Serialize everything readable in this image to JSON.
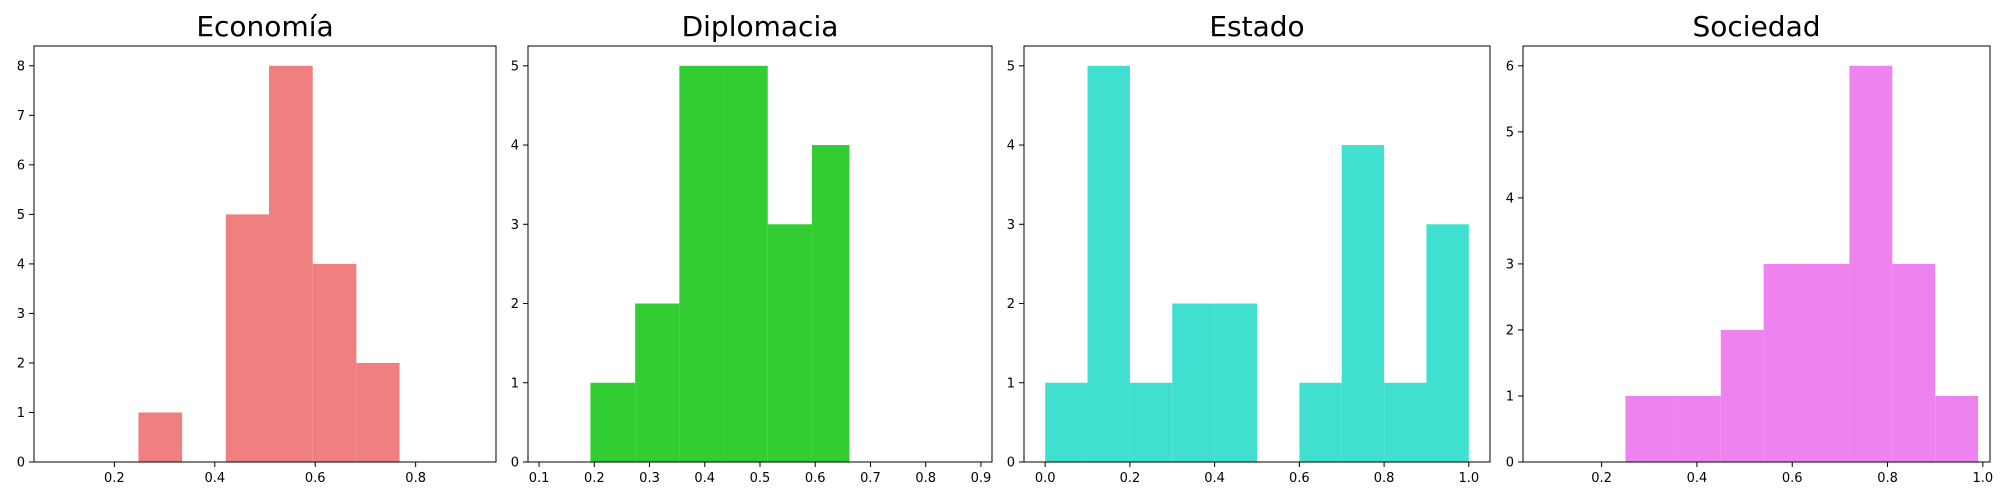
{
  "chart_data": [
    {
      "type": "bar",
      "subtype": "histogram",
      "title": "Economía",
      "color": "#f08080",
      "xlim": [
        0.04,
        0.96
      ],
      "ylim": [
        0,
        8.4
      ],
      "xticks": [
        0.2,
        0.4,
        0.6,
        0.8
      ],
      "xtick_labels": [
        "0.2",
        "0.4",
        "0.6",
        "0.8"
      ],
      "yticks": [
        0,
        1,
        2,
        3,
        4,
        5,
        6,
        7,
        8
      ],
      "ytick_labels": [
        "0",
        "1",
        "2",
        "3",
        "4",
        "5",
        "6",
        "7",
        "8"
      ],
      "bins": [
        {
          "x0": 0.248,
          "x1": 0.335,
          "count": 1
        },
        {
          "x0": 0.422,
          "x1": 0.508,
          "count": 5
        },
        {
          "x0": 0.508,
          "x1": 0.595,
          "count": 8
        },
        {
          "x0": 0.595,
          "x1": 0.682,
          "count": 4
        },
        {
          "x0": 0.682,
          "x1": 0.768,
          "count": 2
        }
      ]
    },
    {
      "type": "bar",
      "subtype": "histogram",
      "title": "Diplomacia",
      "color": "#32cd32",
      "xlim": [
        0.08,
        0.92
      ],
      "ylim": [
        0,
        5.25
      ],
      "xticks": [
        0.1,
        0.2,
        0.3,
        0.4,
        0.5,
        0.6,
        0.7,
        0.8,
        0.9
      ],
      "xtick_labels": [
        "0.1",
        "0.2",
        "0.3",
        "0.4",
        "0.5",
        "0.6",
        "0.7",
        "0.8",
        "0.9"
      ],
      "yticks": [
        0,
        1,
        2,
        3,
        4,
        5
      ],
      "ytick_labels": [
        "0",
        "1",
        "2",
        "3",
        "4",
        "5"
      ],
      "bins": [
        {
          "x0": 0.193,
          "x1": 0.274,
          "count": 1
        },
        {
          "x0": 0.274,
          "x1": 0.354,
          "count": 2
        },
        {
          "x0": 0.354,
          "x1": 0.434,
          "count": 5
        },
        {
          "x0": 0.434,
          "x1": 0.514,
          "count": 5
        },
        {
          "x0": 0.514,
          "x1": 0.594,
          "count": 3
        },
        {
          "x0": 0.594,
          "x1": 0.662,
          "count": 4
        }
      ]
    },
    {
      "type": "bar",
      "subtype": "histogram",
      "title": "Estado",
      "color": "#40e0d0",
      "xlim": [
        -0.05,
        1.05
      ],
      "ylim": [
        0,
        5.25
      ],
      "xticks": [
        0.0,
        0.2,
        0.4,
        0.6,
        0.8,
        1.0
      ],
      "xtick_labels": [
        "0.0",
        "0.2",
        "0.4",
        "0.6",
        "0.8",
        "1.0"
      ],
      "yticks": [
        0,
        1,
        2,
        3,
        4,
        5
      ],
      "ytick_labels": [
        "0",
        "1",
        "2",
        "3",
        "4",
        "5"
      ],
      "bins": [
        {
          "x0": 0.0,
          "x1": 0.1,
          "count": 1
        },
        {
          "x0": 0.1,
          "x1": 0.2,
          "count": 5
        },
        {
          "x0": 0.2,
          "x1": 0.3,
          "count": 1
        },
        {
          "x0": 0.3,
          "x1": 0.4,
          "count": 2
        },
        {
          "x0": 0.4,
          "x1": 0.5,
          "count": 2
        },
        {
          "x0": 0.5,
          "x1": 0.6,
          "count": 0
        },
        {
          "x0": 0.6,
          "x1": 0.7,
          "count": 1
        },
        {
          "x0": 0.7,
          "x1": 0.8,
          "count": 4
        },
        {
          "x0": 0.8,
          "x1": 0.9,
          "count": 1
        },
        {
          "x0": 0.9,
          "x1": 1.0,
          "count": 3
        }
      ]
    },
    {
      "type": "bar",
      "subtype": "histogram",
      "title": "Sociedad",
      "color": "#ee82ee",
      "xlim": [
        0.035,
        1.015
      ],
      "ylim": [
        0,
        6.3
      ],
      "xticks": [
        0.2,
        0.4,
        0.6,
        0.8,
        1.0
      ],
      "xtick_labels": [
        "0.2",
        "0.4",
        "0.6",
        "0.8",
        "1.0"
      ],
      "yticks": [
        0,
        1,
        2,
        3,
        4,
        5,
        6
      ],
      "ytick_labels": [
        "0",
        "1",
        "2",
        "3",
        "4",
        "5",
        "6"
      ],
      "bins": [
        {
          "x0": 0.25,
          "x1": 0.35,
          "count": 1
        },
        {
          "x0": 0.35,
          "x1": 0.45,
          "count": 1
        },
        {
          "x0": 0.45,
          "x1": 0.54,
          "count": 2
        },
        {
          "x0": 0.54,
          "x1": 0.63,
          "count": 3
        },
        {
          "x0": 0.63,
          "x1": 0.72,
          "count": 3
        },
        {
          "x0": 0.72,
          "x1": 0.81,
          "count": 6
        },
        {
          "x0": 0.81,
          "x1": 0.9,
          "count": 3
        },
        {
          "x0": 0.9,
          "x1": 0.99,
          "count": 1
        }
      ]
    }
  ]
}
